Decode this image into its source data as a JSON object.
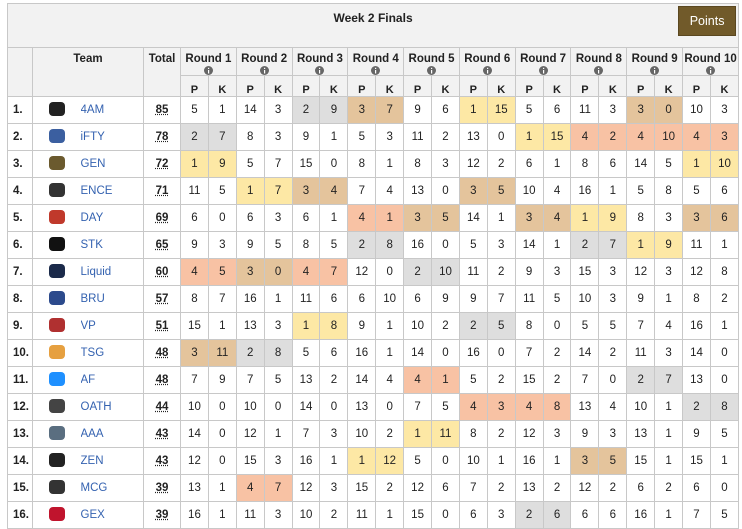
{
  "header": {
    "title": "Week 2 Finals",
    "button": "Points"
  },
  "table": {
    "columns": {
      "team": "Team",
      "total": "Total",
      "rounds": [
        "Round 1",
        "Round 2",
        "Round 3",
        "Round 4",
        "Round 5",
        "Round 6",
        "Round 7",
        "Round 8",
        "Round 9",
        "Round 10"
      ],
      "sub": [
        "P",
        "K"
      ]
    },
    "highlight": {
      "1": "#fde8a5",
      "2": "#dedede",
      "3": "#e4c49c",
      "4": "#f8c2a4"
    },
    "rows": [
      {
        "rank": "1.",
        "team": "4AM",
        "total": 85,
        "rounds": [
          [
            5,
            1
          ],
          [
            14,
            3
          ],
          [
            2,
            9
          ],
          [
            3,
            7
          ],
          [
            9,
            6
          ],
          [
            1,
            15
          ],
          [
            5,
            6
          ],
          [
            11,
            3
          ],
          [
            3,
            0
          ],
          [
            10,
            3
          ]
        ]
      },
      {
        "rank": "2.",
        "team": "iFTY",
        "total": 78,
        "rounds": [
          [
            2,
            7
          ],
          [
            8,
            3
          ],
          [
            9,
            1
          ],
          [
            5,
            3
          ],
          [
            11,
            2
          ],
          [
            13,
            0
          ],
          [
            1,
            15
          ],
          [
            4,
            2
          ],
          [
            4,
            10
          ],
          [
            4,
            3
          ]
        ]
      },
      {
        "rank": "3.",
        "team": "GEN",
        "total": 72,
        "rounds": [
          [
            1,
            9
          ],
          [
            5,
            7
          ],
          [
            15,
            0
          ],
          [
            8,
            1
          ],
          [
            8,
            3
          ],
          [
            12,
            2
          ],
          [
            6,
            1
          ],
          [
            8,
            6
          ],
          [
            14,
            5
          ],
          [
            1,
            10
          ]
        ]
      },
      {
        "rank": "4.",
        "team": "ENCE",
        "total": 71,
        "rounds": [
          [
            11,
            5
          ],
          [
            1,
            7
          ],
          [
            3,
            4
          ],
          [
            7,
            4
          ],
          [
            13,
            0
          ],
          [
            3,
            5
          ],
          [
            10,
            4
          ],
          [
            16,
            1
          ],
          [
            5,
            8
          ],
          [
            5,
            6
          ]
        ]
      },
      {
        "rank": "5.",
        "team": "DAY",
        "total": 69,
        "rounds": [
          [
            6,
            0
          ],
          [
            6,
            3
          ],
          [
            6,
            1
          ],
          [
            4,
            1
          ],
          [
            3,
            5
          ],
          [
            14,
            1
          ],
          [
            3,
            4
          ],
          [
            1,
            9
          ],
          [
            8,
            3
          ],
          [
            3,
            6
          ]
        ]
      },
      {
        "rank": "6.",
        "team": "STK",
        "total": 65,
        "rounds": [
          [
            9,
            3
          ],
          [
            9,
            5
          ],
          [
            8,
            5
          ],
          [
            2,
            8
          ],
          [
            16,
            0
          ],
          [
            5,
            3
          ],
          [
            14,
            1
          ],
          [
            2,
            7
          ],
          [
            1,
            9
          ],
          [
            11,
            1
          ]
        ]
      },
      {
        "rank": "7.",
        "team": "Liquid",
        "total": 60,
        "rounds": [
          [
            4,
            5
          ],
          [
            3,
            0
          ],
          [
            4,
            7
          ],
          [
            12,
            0
          ],
          [
            2,
            10
          ],
          [
            11,
            2
          ],
          [
            9,
            3
          ],
          [
            15,
            3
          ],
          [
            12,
            3
          ],
          [
            12,
            8
          ]
        ]
      },
      {
        "rank": "8.",
        "team": "BRU",
        "total": 57,
        "rounds": [
          [
            8,
            7
          ],
          [
            16,
            1
          ],
          [
            11,
            6
          ],
          [
            6,
            10
          ],
          [
            6,
            9
          ],
          [
            9,
            7
          ],
          [
            11,
            5
          ],
          [
            10,
            3
          ],
          [
            9,
            1
          ],
          [
            8,
            2
          ]
        ]
      },
      {
        "rank": "9.",
        "team": "VP",
        "total": 51,
        "rounds": [
          [
            15,
            1
          ],
          [
            13,
            3
          ],
          [
            1,
            8
          ],
          [
            9,
            1
          ],
          [
            10,
            2
          ],
          [
            2,
            5
          ],
          [
            8,
            0
          ],
          [
            5,
            5
          ],
          [
            7,
            4
          ],
          [
            16,
            1
          ]
        ]
      },
      {
        "rank": "10.",
        "team": "TSG",
        "total": 48,
        "rounds": [
          [
            3,
            11
          ],
          [
            2,
            8
          ],
          [
            5,
            6
          ],
          [
            16,
            1
          ],
          [
            14,
            0
          ],
          [
            16,
            0
          ],
          [
            7,
            2
          ],
          [
            14,
            2
          ],
          [
            11,
            3
          ],
          [
            14,
            0
          ]
        ]
      },
      {
        "rank": "11.",
        "team": "AF",
        "total": 48,
        "rounds": [
          [
            7,
            9
          ],
          [
            7,
            5
          ],
          [
            13,
            2
          ],
          [
            14,
            4
          ],
          [
            4,
            1
          ],
          [
            5,
            2
          ],
          [
            15,
            2
          ],
          [
            7,
            0
          ],
          [
            2,
            7
          ],
          [
            13,
            0
          ]
        ]
      },
      {
        "rank": "12.",
        "team": "OATH",
        "total": 44,
        "rounds": [
          [
            10,
            0
          ],
          [
            10,
            0
          ],
          [
            14,
            0
          ],
          [
            13,
            0
          ],
          [
            7,
            5
          ],
          [
            4,
            3
          ],
          [
            4,
            8
          ],
          [
            13,
            4
          ],
          [
            10,
            1
          ],
          [
            2,
            8
          ]
        ]
      },
      {
        "rank": "13.",
        "team": "AAA",
        "total": 43,
        "rounds": [
          [
            14,
            0
          ],
          [
            12,
            1
          ],
          [
            7,
            3
          ],
          [
            10,
            2
          ],
          [
            1,
            11
          ],
          [
            8,
            2
          ],
          [
            12,
            3
          ],
          [
            9,
            3
          ],
          [
            13,
            1
          ],
          [
            9,
            5
          ]
        ]
      },
      {
        "rank": "14.",
        "team": "ZEN",
        "total": 43,
        "rounds": [
          [
            12,
            0
          ],
          [
            15,
            3
          ],
          [
            16,
            1
          ],
          [
            1,
            12
          ],
          [
            5,
            0
          ],
          [
            10,
            1
          ],
          [
            16,
            1
          ],
          [
            3,
            5
          ],
          [
            15,
            1
          ],
          [
            15,
            1
          ]
        ]
      },
      {
        "rank": "15.",
        "team": "MCG",
        "total": 39,
        "rounds": [
          [
            13,
            1
          ],
          [
            4,
            7
          ],
          [
            12,
            3
          ],
          [
            15,
            2
          ],
          [
            12,
            6
          ],
          [
            7,
            2
          ],
          [
            13,
            2
          ],
          [
            12,
            2
          ],
          [
            6,
            2
          ],
          [
            6,
            0
          ]
        ]
      },
      {
        "rank": "16.",
        "team": "GEX",
        "total": 39,
        "rounds": [
          [
            16,
            1
          ],
          [
            11,
            3
          ],
          [
            10,
            2
          ],
          [
            11,
            1
          ],
          [
            15,
            0
          ],
          [
            6,
            3
          ],
          [
            2,
            6
          ],
          [
            6,
            6
          ],
          [
            16,
            1
          ],
          [
            7,
            5
          ]
        ]
      }
    ]
  }
}
